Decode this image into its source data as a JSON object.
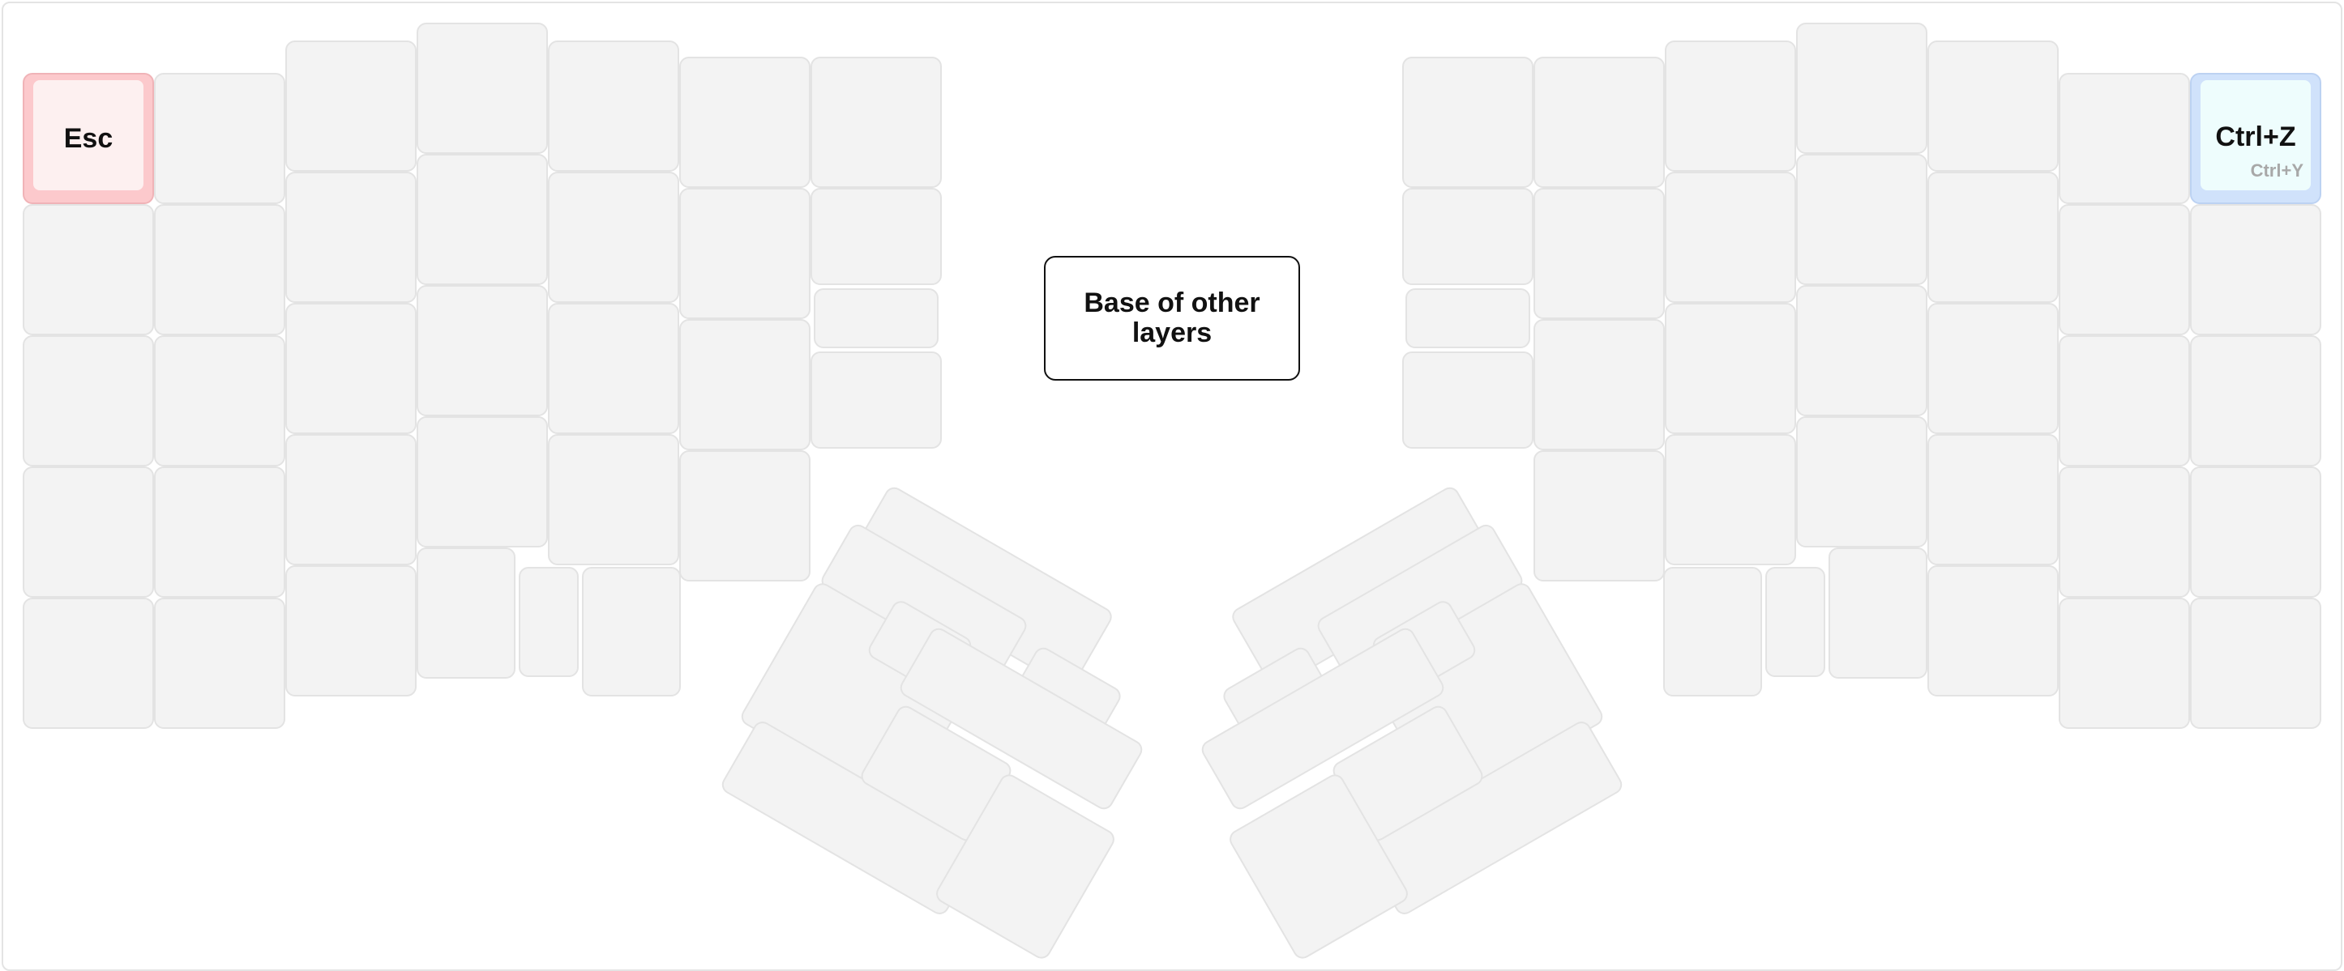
{
  "layer": {
    "name": "Base of other layers"
  },
  "keyboard": {
    "left_half": {
      "highlighted_key": {
        "label": "Esc",
        "color": "#fcc9cc"
      }
    },
    "right_half": {
      "highlighted_key": {
        "label": "Ctrl+Z",
        "hold_label": "Ctrl+Y",
        "color": "#d0e2fb"
      }
    },
    "key_color": "#f3f3f3"
  }
}
